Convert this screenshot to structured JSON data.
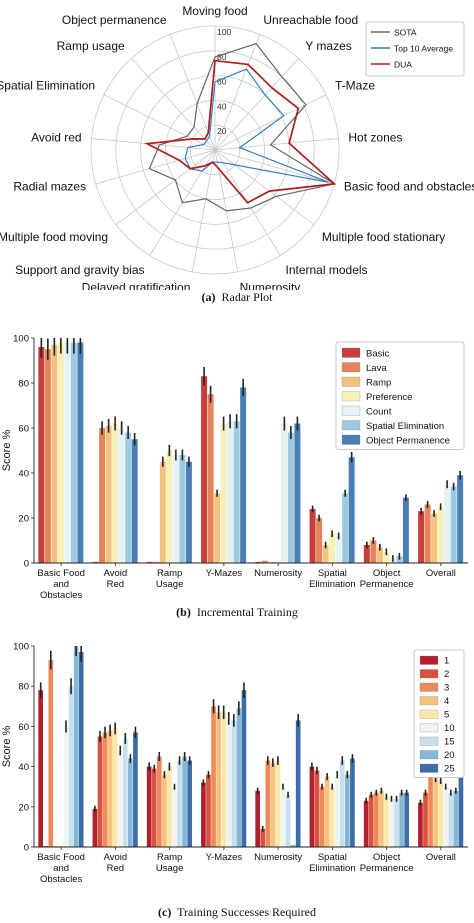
{
  "captions": {
    "a": {
      "tag": "(a)",
      "text": "Radar Plot"
    },
    "b": {
      "tag": "(b)",
      "text": "Incremental Training"
    },
    "c": {
      "tag": "(c)",
      "text": "Training Successes Required"
    }
  },
  "chart_data": [
    {
      "type": "radar",
      "categories": [
        "Moving food",
        "Unreachable food",
        "Y mazes",
        "T-Maze",
        "Hot zones",
        "Basic food and obstacles",
        "Multiple food stationary",
        "Internal models",
        "Numerosity",
        "Delayed gratification",
        "Support and gravity bias",
        "Multiple food moving",
        "Radial mazes",
        "Avoid red",
        "Spatial Elimination",
        "Ramp usage",
        "Object permanence"
      ],
      "rticks": [
        20,
        40,
        60,
        80,
        100
      ],
      "rlim": [
        0,
        100
      ],
      "legend_position": "top-right",
      "series": [
        {
          "name": "SOTA",
          "color": "#666666",
          "values": [
            75,
            92,
            80,
            82,
            45,
            100,
            62,
            55,
            50,
            40,
            50,
            40,
            55,
            45,
            25,
            25,
            40
          ]
        },
        {
          "name": "Top 10 Average",
          "color": "#2f7fc1",
          "values": [
            55,
            70,
            60,
            62,
            20,
            95,
            20,
            12,
            10,
            10,
            20,
            25,
            25,
            22,
            10,
            10,
            12
          ]
        },
        {
          "name": "DUA",
          "color": "#b01c1c",
          "values": [
            72,
            74,
            68,
            75,
            60,
            100,
            55,
            50,
            15,
            10,
            15,
            25,
            30,
            55,
            20,
            12,
            15
          ]
        }
      ]
    },
    {
      "type": "bar",
      "ylabel": "Score %",
      "ylim": [
        0,
        100
      ],
      "yticks": [
        0,
        20,
        40,
        60,
        80,
        100
      ],
      "legend_position": "top-right",
      "categories": [
        "Basic Food\nand\nObstacles",
        "Avoid\nRed",
        "Ramp\nUsage",
        "Y-Mazes",
        "Numerosity",
        "Spatial\nElimination",
        "Object\nPermanence",
        "Overall"
      ],
      "series": [
        {
          "name": "Basic",
          "color": "#c93d3a",
          "values": [
            96,
            0.5,
            0.5,
            83,
            0.5,
            24,
            8,
            23
          ]
        },
        {
          "name": "Lava",
          "color": "#e4845a",
          "values": [
            95,
            60,
            0.5,
            75,
            1,
            20,
            10,
            26
          ]
        },
        {
          "name": "Ramp",
          "color": "#f4c27f",
          "values": [
            97,
            61,
            45,
            31,
            0.5,
            8,
            7,
            22
          ]
        },
        {
          "name": "Preference",
          "color": "#f7f0b6",
          "values": [
            98,
            62,
            50,
            62,
            1,
            13,
            5,
            25
          ]
        },
        {
          "name": "Count",
          "color": "#e4f1f5",
          "values": [
            98,
            60,
            48,
            63,
            62,
            12,
            2,
            35
          ]
        },
        {
          "name": "Spatial Elimination",
          "color": "#9ecae0",
          "values": [
            98,
            58,
            48,
            63,
            58,
            31,
            3,
            34
          ]
        },
        {
          "name": "Object Permanence",
          "color": "#4a7fb5",
          "values": [
            98,
            55,
            45,
            78,
            62,
            47,
            29,
            39
          ]
        }
      ]
    },
    {
      "type": "bar",
      "ylabel": "Score %",
      "ylim": [
        0,
        100
      ],
      "yticks": [
        0,
        20,
        40,
        60,
        80,
        100
      ],
      "legend_position": "top-right",
      "categories": [
        "Basic Food\nand\nObstacles",
        "Avoid\nRed",
        "Ramp\nUsage",
        "Y-Mazes",
        "Numerosity",
        "Spatial\nElimination",
        "Object\nPermanence",
        "Overall"
      ],
      "series": [
        {
          "name": "1",
          "color": "#b2202e",
          "values": [
            78,
            19,
            40,
            32,
            28,
            40,
            23,
            22
          ]
        },
        {
          "name": "2",
          "color": "#d95240",
          "values": [
            0.5,
            55,
            39,
            36,
            9,
            38,
            26,
            27
          ]
        },
        {
          "name": "3",
          "color": "#ee8a59",
          "values": [
            93,
            57,
            45,
            70,
            43,
            30,
            27,
            36
          ]
        },
        {
          "name": "4",
          "color": "#f7c27e",
          "values": [
            0.5,
            58,
            36,
            67,
            42,
            35,
            28,
            34
          ]
        },
        {
          "name": "5",
          "color": "#fbe8a9",
          "values": [
            0.5,
            59,
            40,
            67,
            43,
            30,
            25,
            33
          ]
        },
        {
          "name": "10",
          "color": "#eef5f0",
          "values": [
            60,
            48,
            30,
            64,
            30,
            36,
            24,
            30
          ]
        },
        {
          "name": "15",
          "color": "#c6e1ed",
          "values": [
            80,
            54,
            43,
            63,
            26,
            43,
            24,
            27
          ]
        },
        {
          "name": "20",
          "color": "#85b7d6",
          "values": [
            100,
            44,
            45,
            69,
            1,
            36,
            27,
            28
          ]
        },
        {
          "name": "25",
          "color": "#3c6da8",
          "values": [
            97,
            57,
            43,
            78,
            63,
            44,
            27,
            39
          ]
        }
      ]
    }
  ]
}
